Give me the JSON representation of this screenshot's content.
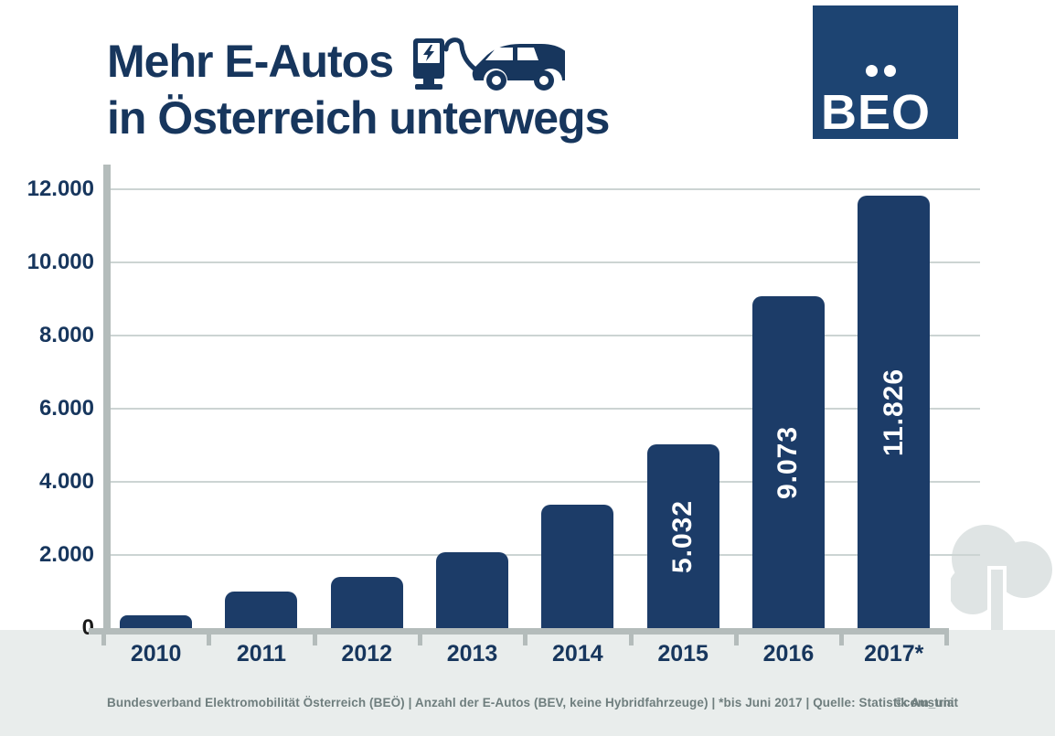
{
  "colors": {
    "navy": "#17365d",
    "bar": "#1c3c68",
    "logo_bg": "#1d4472",
    "white": "#ffffff",
    "grid": "#ccd4d3",
    "axis": "#b4bcbb",
    "band": "#e9edec",
    "tree": "#dfe4e4",
    "footer_gray": "#6f7e7e",
    "zero_label": "#1a1a1a"
  },
  "header": {
    "title_line1": "Mehr E-Autos",
    "title_line2": "in Österreich unterwegs",
    "logo_text": "BEO"
  },
  "chart_data": {
    "type": "bar",
    "title": "Mehr E-Autos in Österreich unterwegs",
    "xlabel": "",
    "ylabel": "",
    "categories": [
      "2010",
      "2011",
      "2012",
      "2013",
      "2014",
      "2015",
      "2016",
      "2017*"
    ],
    "values": [
      353,
      989,
      1389,
      2070,
      3386,
      5032,
      9073,
      11826
    ],
    "bar_labels": [
      "",
      "",
      "",
      "",
      "",
      "5.032",
      "9.073",
      "11.826"
    ],
    "y_tick_values": [
      0,
      2000,
      4000,
      6000,
      8000,
      10000,
      12000
    ],
    "y_tick_labels": [
      "0",
      "2.000",
      "4.000",
      "6.000",
      "8.000",
      "10.000",
      "12.000"
    ],
    "ylim": [
      0,
      12000
    ],
    "grid": "horizontal",
    "legend": "none"
  },
  "footer": {
    "source_line": "Bundesverband Elektromobilität Österreich (BEÖ) | Anzahl der E-Autos (BEV, keine Hybridfahrzeuge) | *bis Juni 2017 | Quelle: Statistik Austria",
    "credit": "©com_unit"
  }
}
